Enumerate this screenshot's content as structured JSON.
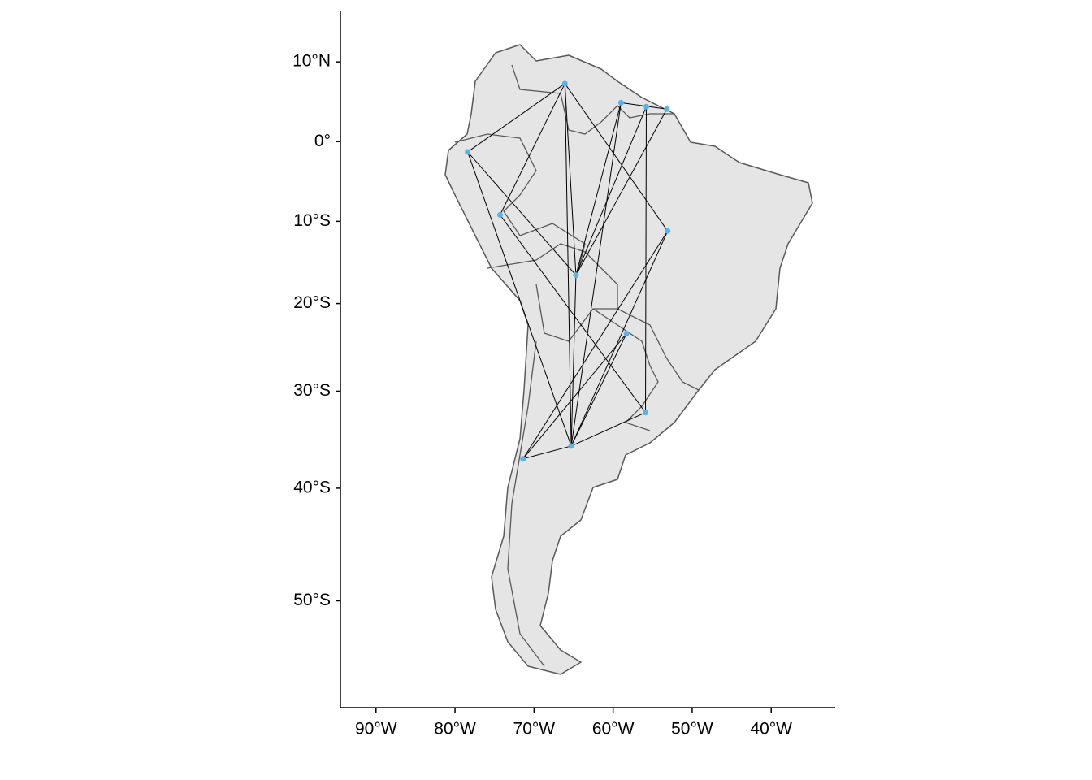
{
  "chart_data": {
    "type": "map",
    "projection": "mercator",
    "x": [
      -66.1,
      -59.0,
      -55.8,
      -53.2,
      -78.4,
      -74.3,
      -53.1,
      -64.7,
      -58.3,
      -55.9,
      -65.3,
      -71.4
    ],
    "values": [
      7.3,
      4.9,
      4.4,
      4.1,
      -1.3,
      -9.2,
      -11.2,
      -16.6,
      -23.5,
      -32.3,
      -35.8,
      -37.1
    ],
    "color": "#56b4e9",
    "line_color": "#000000",
    "edges": [
      [
        0,
        4
      ],
      [
        0,
        5
      ],
      [
        0,
        10
      ],
      [
        0,
        6
      ],
      [
        0,
        7
      ],
      [
        1,
        3
      ],
      [
        1,
        7
      ],
      [
        2,
        7
      ],
      [
        3,
        7
      ],
      [
        1,
        10
      ],
      [
        2,
        9
      ],
      [
        4,
        7
      ],
      [
        4,
        10
      ],
      [
        5,
        9
      ],
      [
        6,
        11
      ],
      [
        7,
        10
      ],
      [
        8,
        11
      ],
      [
        8,
        10
      ],
      [
        10,
        9
      ],
      [
        11,
        10
      ],
      [
        6,
        10
      ]
    ],
    "xlim": [
      -94.5,
      -31.9
    ],
    "ylim": [
      -57.9,
      16.2
    ],
    "xticks": [
      {
        "value": -90,
        "label": "90°W"
      },
      {
        "value": -80,
        "label": "80°W"
      },
      {
        "value": -70,
        "label": "70°W"
      },
      {
        "value": -60,
        "label": "60°W"
      },
      {
        "value": -50,
        "label": "50°W"
      },
      {
        "value": -40,
        "label": "40°W"
      }
    ],
    "yticks": [
      {
        "value": 10,
        "label": "10°N"
      },
      {
        "value": 0,
        "label": "0°"
      },
      {
        "value": -10,
        "label": "10°S"
      },
      {
        "value": -20,
        "label": "20°S"
      },
      {
        "value": -30,
        "label": "30°S"
      },
      {
        "value": -40,
        "label": "40°S"
      },
      {
        "value": -50,
        "label": "50°S"
      }
    ]
  }
}
